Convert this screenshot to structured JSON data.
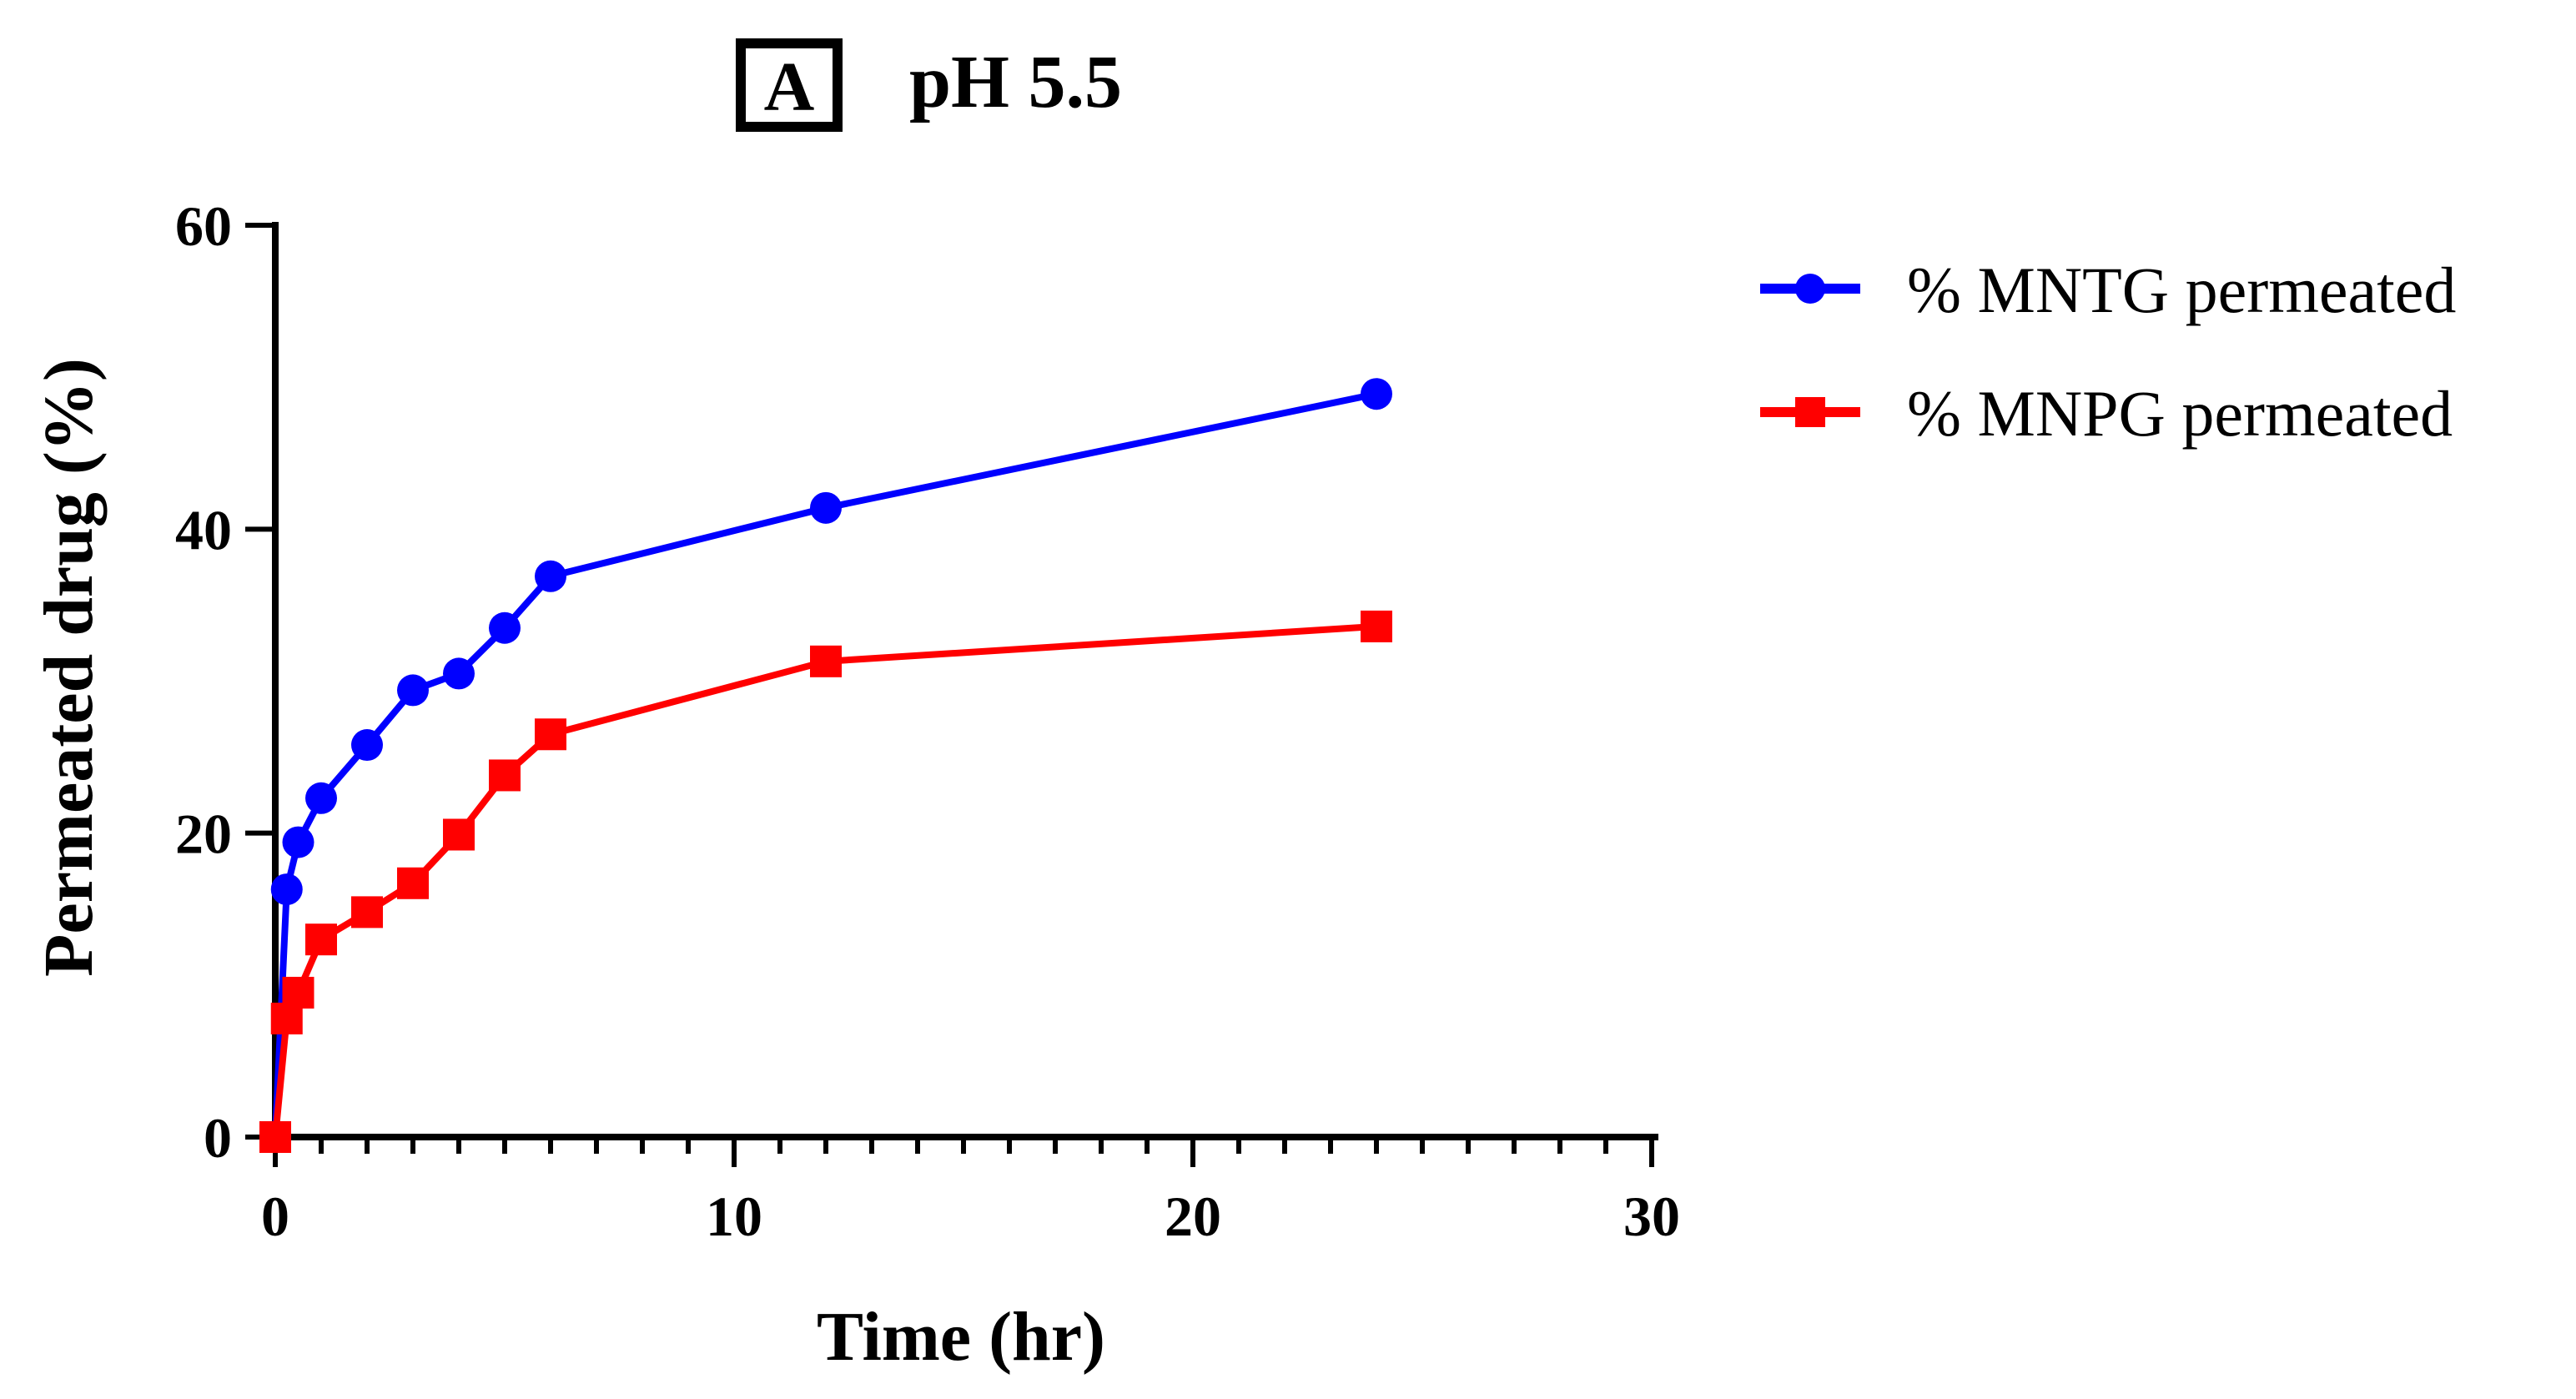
{
  "chart_data": {
    "type": "line",
    "panel_label": "A",
    "title": "pH 5.5",
    "xlabel": "Time (hr)",
    "ylabel": "Permeated drug (%)",
    "xlim": [
      0,
      30
    ],
    "ylim": [
      0,
      60
    ],
    "x_major_ticks": [
      0,
      10,
      20,
      30
    ],
    "x_minor_step": 1,
    "y_major_ticks": [
      0,
      20,
      40,
      60
    ],
    "x_tick_labels": [
      "0",
      "10",
      "20",
      "30"
    ],
    "y_tick_labels": [
      "0",
      "20",
      "40",
      "60"
    ],
    "grid": false,
    "legend_position": "right",
    "series": [
      {
        "name": "% MNTG permeated",
        "color": "#0000ff",
        "marker": "circle",
        "x": [
          0,
          0.25,
          0.5,
          1,
          2,
          3,
          4,
          5,
          6,
          12,
          24
        ],
        "values": [
          0,
          16.3,
          19.4,
          22.3,
          25.8,
          29.4,
          30.5,
          33.5,
          36.9,
          41.4,
          48.9
        ]
      },
      {
        "name": "% MNPG permeated",
        "color": "#ff0000",
        "marker": "square",
        "x": [
          0,
          0.25,
          0.5,
          1,
          2,
          3,
          4,
          5,
          6,
          12,
          24
        ],
        "values": [
          0,
          7.8,
          9.5,
          13.0,
          14.8,
          16.7,
          19.9,
          23.8,
          26.5,
          31.3,
          33.6
        ]
      }
    ]
  }
}
